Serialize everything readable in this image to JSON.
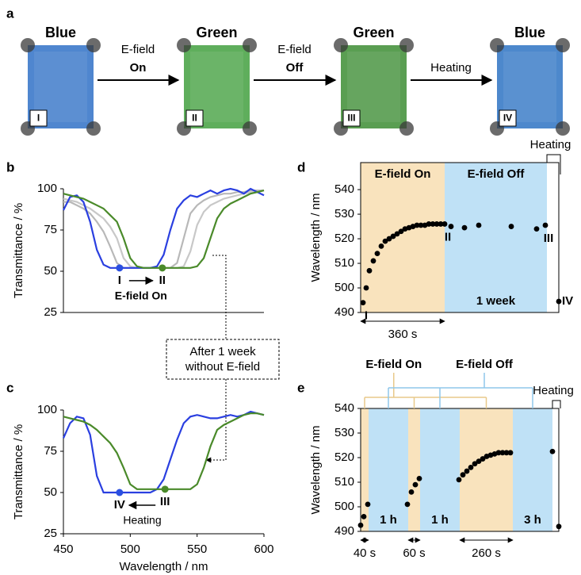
{
  "panel_labels": [
    "a",
    "b",
    "c",
    "d",
    "e"
  ],
  "panel_a": {
    "images": [
      {
        "title": "Blue",
        "label": "I",
        "color": "#4f86cf"
      },
      {
        "title": "Green",
        "label": "II",
        "color": "#5fae5c"
      },
      {
        "title": "Green",
        "label": "III",
        "color": "#5a9e52"
      },
      {
        "title": "Blue",
        "label": "IV",
        "color": "#4d88cc"
      }
    ],
    "arrows": [
      {
        "top": "E-field",
        "bottom": "On",
        "bottom_color": "#f5a623"
      },
      {
        "top": "E-field",
        "bottom": "Off",
        "bottom_color": "#2f6fe8"
      },
      {
        "bottom": "Heating",
        "bottom_color": "#000000"
      }
    ]
  },
  "callout": {
    "lines": [
      "After 1 week",
      "without E-field"
    ]
  },
  "chart_data": [
    {
      "type": "line",
      "ylabel": "Transmittance / %",
      "xlim": [
        450,
        600
      ],
      "ylim": [
        25,
        100
      ],
      "yticks": [
        25,
        50,
        75,
        100
      ],
      "x": [
        450,
        455,
        460,
        465,
        470,
        475,
        480,
        485,
        490,
        495,
        500,
        505,
        510,
        515,
        520,
        525,
        530,
        535,
        540,
        545,
        550,
        555,
        560,
        565,
        570,
        575,
        580,
        585,
        590,
        595,
        600
      ],
      "series": [
        {
          "color": "#b8b8b8",
          "values": [
            92,
            92,
            90,
            88,
            85,
            80,
            74,
            65,
            55,
            52,
            52,
            52,
            52,
            52,
            52,
            52,
            52,
            55,
            70,
            85,
            90,
            93,
            95,
            96,
            97,
            97,
            98,
            98,
            99,
            99,
            99
          ]
        },
        {
          "color": "#c8c8c8",
          "values": [
            94,
            93,
            92,
            90,
            88,
            85,
            82,
            77,
            70,
            58,
            53,
            52,
            52,
            52,
            52,
            52,
            52,
            52,
            53,
            62,
            78,
            86,
            90,
            92,
            94,
            95,
            96,
            97,
            98,
            98,
            99
          ]
        },
        {
          "color": "#2a3fe0",
          "values": [
            87,
            95,
            96,
            92,
            80,
            63,
            54,
            52,
            52,
            52,
            52,
            52,
            52,
            52,
            53,
            60,
            75,
            88,
            93,
            96,
            95,
            97,
            99,
            97,
            99,
            100,
            99,
            97,
            100,
            98,
            96
          ]
        },
        {
          "color": "#4a8a2a",
          "values": [
            97,
            96,
            95,
            94,
            92,
            90,
            88,
            84,
            80,
            70,
            58,
            53,
            52,
            52,
            52,
            52,
            52,
            52,
            52,
            52,
            53,
            58,
            70,
            82,
            88,
            91,
            93,
            95,
            97,
            98,
            99
          ]
        }
      ],
      "points": [
        {
          "x": 492,
          "y": 52,
          "color": "#2a4fe0",
          "label": "I"
        },
        {
          "x": 524,
          "y": 52,
          "color": "#4a8a2a",
          "label": "II"
        }
      ],
      "annotation": "E-field On",
      "annotation_color": "#f5a623"
    },
    {
      "type": "line",
      "ylabel": "Transmittance / %",
      "xlabel": "Wavelength / nm",
      "xlim": [
        450,
        600
      ],
      "ylim": [
        25,
        100
      ],
      "yticks": [
        25,
        50,
        75,
        100
      ],
      "xticks": [
        450,
        500,
        550,
        600
      ],
      "x": [
        450,
        455,
        460,
        465,
        470,
        475,
        480,
        485,
        490,
        495,
        500,
        505,
        510,
        515,
        520,
        525,
        530,
        535,
        540,
        545,
        550,
        555,
        560,
        565,
        570,
        575,
        580,
        585,
        590,
        595,
        600
      ],
      "series": [
        {
          "color": "#2a3fe0",
          "values": [
            83,
            92,
            96,
            95,
            85,
            60,
            50,
            50,
            50,
            50,
            50,
            50,
            50,
            50,
            52,
            58,
            70,
            82,
            92,
            96,
            97,
            96,
            95,
            95,
            96,
            97,
            96,
            97,
            99,
            98,
            97
          ]
        },
        {
          "color": "#4a8a2a",
          "values": [
            96,
            95,
            94,
            93,
            91,
            88,
            84,
            80,
            74,
            65,
            55,
            52,
            52,
            52,
            52,
            52,
            52,
            52,
            52,
            52,
            55,
            65,
            78,
            88,
            91,
            93,
            95,
            97,
            98,
            98,
            97
          ]
        }
      ],
      "points": [
        {
          "x": 526,
          "y": 52,
          "color": "#4a8a2a",
          "label": "III"
        },
        {
          "x": 492,
          "y": 50,
          "color": "#2a4fe0",
          "label": "IV"
        }
      ],
      "annotation": "Heating",
      "annotation_color": "#000000"
    },
    {
      "type": "scatter",
      "ylabel": "Wavelength / nm",
      "xlim": [
        0,
        100
      ],
      "ylim": [
        490,
        551
      ],
      "yticks": [
        490,
        500,
        510,
        520,
        530,
        540
      ],
      "regions": [
        {
          "start": 0,
          "end": 42.4,
          "fill": "#f9e3bd",
          "title": "E-field On",
          "title_color": "#f5a623"
        },
        {
          "start": 42.4,
          "end": 94,
          "fill": "#bfe1f6",
          "title": "E-field Off",
          "title_color": "#2f6fe8",
          "label": "1 week"
        },
        {
          "start": 94,
          "end": 100,
          "fill": "#ffffff"
        }
      ],
      "groups": [
        {
          "title": "Heating",
          "fill": "#ffffff",
          "color": "#000000"
        }
      ],
      "x": [
        1.2,
        2.8,
        4.4,
        6.4,
        8.4,
        10.4,
        12.4,
        14.4,
        16.4,
        18.4,
        20.4,
        22.4,
        24.4,
        26.4,
        28.4,
        30.4,
        32.4,
        34.4,
        36.4,
        38.4,
        40.4,
        42.4,
        45.6,
        52.4,
        59.6,
        76,
        88.8,
        93.2,
        100
      ],
      "values": [
        494,
        500,
        507,
        511,
        514,
        517,
        519,
        520,
        521,
        522,
        523,
        524,
        524.5,
        525,
        525.5,
        525.5,
        525.5,
        526,
        526,
        526,
        526,
        526,
        525,
        524.5,
        525.5,
        525,
        524,
        525.5,
        494.5
      ],
      "point_labels": [
        "I",
        null,
        null,
        null,
        null,
        null,
        null,
        null,
        null,
        null,
        null,
        null,
        null,
        null,
        null,
        null,
        null,
        null,
        null,
        null,
        null,
        "II",
        null,
        null,
        null,
        null,
        null,
        "III",
        "IV"
      ],
      "spans": [
        {
          "start": 0,
          "end": 42.4,
          "label": "360 s"
        }
      ]
    },
    {
      "type": "scatter",
      "ylabel": "Wavelength / nm",
      "xlim": [
        0,
        100
      ],
      "ylim": [
        490,
        540
      ],
      "yticks": [
        490,
        500,
        510,
        520,
        530,
        540
      ],
      "regions": [
        {
          "start": 0,
          "end": 4,
          "fill": "#f9e3bd"
        },
        {
          "start": 4,
          "end": 24,
          "fill": "#bfe1f6",
          "label": "1 h"
        },
        {
          "start": 24,
          "end": 30,
          "fill": "#f9e3bd"
        },
        {
          "start": 30,
          "end": 50,
          "fill": "#bfe1f6",
          "label": "1 h"
        },
        {
          "start": 50,
          "end": 76.8,
          "fill": "#f9e3bd"
        },
        {
          "start": 76.8,
          "end": 96.8,
          "fill": "#bfe1f6",
          "label": "3 h"
        },
        {
          "start": 96.8,
          "end": 100,
          "fill": "#ffffff"
        }
      ],
      "groups": [
        {
          "title": "E-field On",
          "fill": "#f9e3bd",
          "color": "#f5a623"
        },
        {
          "title": "E-field Off",
          "fill": "#bfe1f6",
          "color": "#2f6fe8"
        },
        {
          "title": "Heating",
          "fill": "#ffffff",
          "color": "#000000"
        }
      ],
      "x": [
        0,
        1.6,
        3.6,
        23.6,
        25.6,
        27.6,
        29.6,
        49.6,
        51.6,
        53.6,
        55.6,
        57.6,
        59.6,
        61.6,
        63.6,
        65.6,
        67.6,
        69.6,
        71.6,
        73.6,
        75.6,
        96.8,
        100
      ],
      "values": [
        492.5,
        496,
        501,
        501,
        506,
        509,
        511.5,
        511,
        513,
        514.5,
        516,
        517.5,
        518.5,
        519.5,
        520.5,
        521,
        521.5,
        522,
        522,
        522,
        522,
        522.5,
        492
      ],
      "spans": [
        {
          "start": 0,
          "end": 4,
          "label": "40 s"
        },
        {
          "start": 24,
          "end": 30,
          "label": "60 s"
        },
        {
          "start": 50,
          "end": 76.8,
          "label": "260 s"
        }
      ]
    }
  ]
}
